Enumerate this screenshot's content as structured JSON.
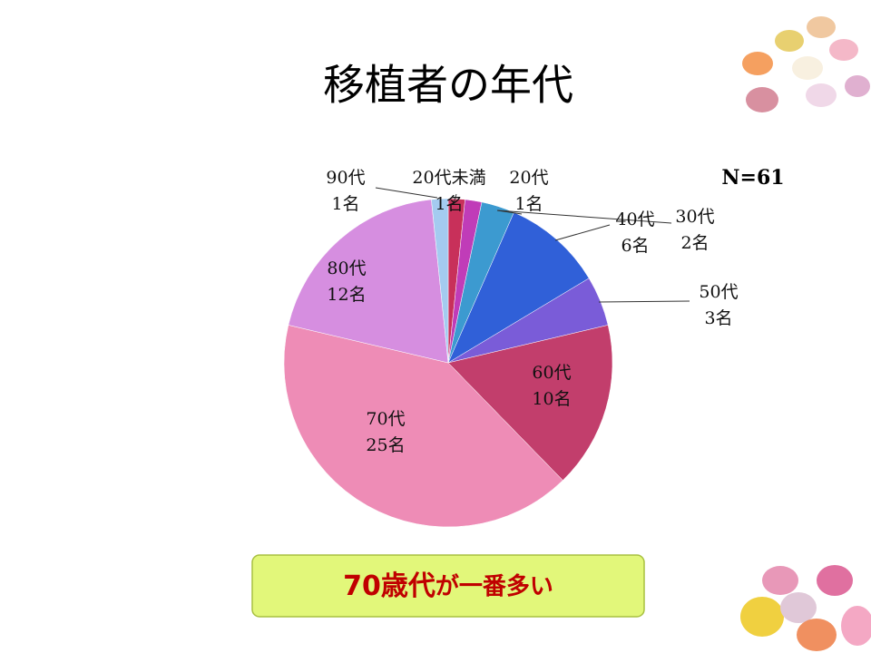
{
  "chart_data": {
    "type": "pie",
    "title": "移植者の年代",
    "note": "N=61",
    "categories": [
      "20代未満",
      "20代",
      "30代",
      "40代",
      "50代",
      "60代",
      "70代",
      "80代",
      "90代"
    ],
    "values": [
      1,
      1,
      2,
      6,
      3,
      10,
      25,
      12,
      1
    ],
    "value_labels": [
      "1名",
      "1名",
      "2名",
      "6名",
      "3名",
      "10名",
      "25名",
      "12名",
      "1名"
    ],
    "colors": [
      "#c8305a",
      "#c03cb8",
      "#3c9ad0",
      "#3060d8",
      "#7a5cd8",
      "#c23e6c",
      "#ee8cb6",
      "#d68ee0",
      "#a4cbf0"
    ],
    "callout": {
      "emphasis": "70歳代",
      "text": "が一番多い"
    }
  }
}
